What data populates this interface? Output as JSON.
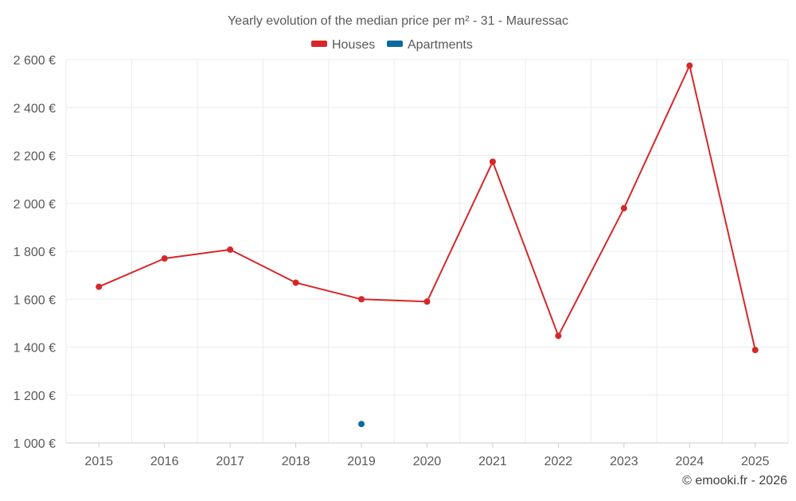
{
  "chart_data": {
    "type": "line",
    "title": "Yearly evolution of the median price per m² - 31 - Mauressac",
    "categories": [
      "2015",
      "2016",
      "2017",
      "2018",
      "2019",
      "2020",
      "2021",
      "2022",
      "2023",
      "2024",
      "2025"
    ],
    "series": [
      {
        "name": "Houses",
        "color": "#d62728",
        "values": [
          1652,
          1770,
          1807,
          1669,
          1600,
          1590,
          2174,
          1447,
          1980,
          2575,
          1388
        ]
      },
      {
        "name": "Apartments",
        "color": "#0a6aa1",
        "values": [
          null,
          null,
          null,
          null,
          1079,
          null,
          null,
          null,
          null,
          null,
          null
        ]
      }
    ],
    "ylim": [
      1000,
      2600
    ],
    "yticks": [
      1000,
      1200,
      1400,
      1600,
      1800,
      2000,
      2200,
      2400,
      2600
    ],
    "ytick_labels": [
      "1 000 €",
      "1 200 €",
      "1 400 €",
      "1 600 €",
      "1 800 €",
      "2 000 €",
      "2 200 €",
      "2 400 €",
      "2 600 €"
    ],
    "xlabel": "",
    "ylabel": "",
    "grid": true,
    "legend_position": "top-center"
  },
  "footer": {
    "credit": "© emooki.fr - 2026"
  }
}
